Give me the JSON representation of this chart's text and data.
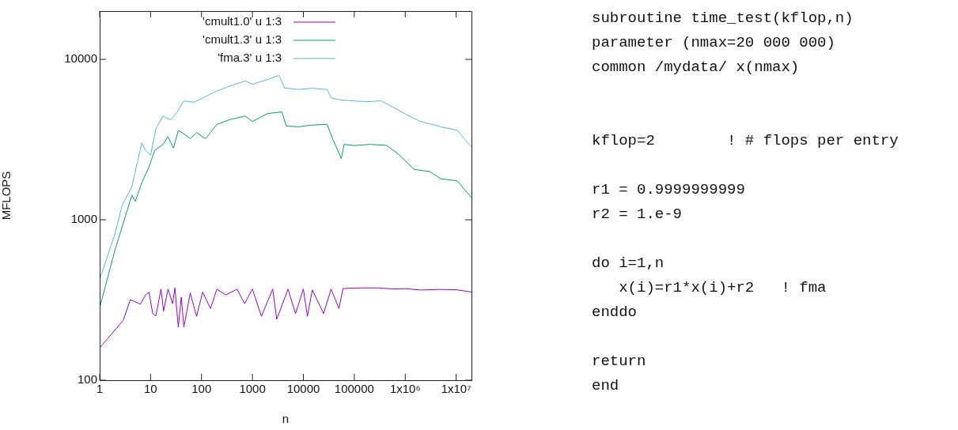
{
  "chart_data": {
    "type": "line",
    "xlabel": "n",
    "ylabel": "MFLOPS",
    "log": "xy",
    "grid": false,
    "legend": "top left",
    "marker": "none",
    "line_style": "solid",
    "xlim": [
      1,
      20000000
    ],
    "xticks": [
      1,
      10,
      100,
      1000,
      10000,
      100000,
      {
        "value": 1000000,
        "label": "1x10⁶"
      },
      {
        "value": 10000000,
        "label": "1x10⁷"
      }
    ],
    "ylim": [
      100,
      20000
    ],
    "yticks": [
      100,
      1000,
      10000
    ],
    "series": [
      {
        "name": "'cmult1.0' u 1:3",
        "color": "#9400d3",
        "x": [
          1,
          2.9,
          4,
          6.3,
          8,
          9.3,
          11,
          12.7,
          16,
          18,
          22,
          27,
          30,
          35,
          40,
          45,
          60,
          80,
          105,
          150,
          200,
          300,
          500,
          700,
          1000,
          1500,
          2500,
          3000,
          5000,
          7000,
          10000,
          12000,
          15000,
          25000,
          35000,
          50000,
          60000,
          80000,
          150000,
          300000,
          600000,
          1000000,
          2000000,
          5000000,
          10000000,
          20000000
        ],
        "values": [
          159,
          236,
          318,
          298,
          340,
          354,
          260,
          251,
          370,
          270,
          370,
          300,
          376,
          214,
          330,
          214,
          350,
          250,
          354,
          280,
          369,
          340,
          369,
          300,
          370,
          250,
          370,
          240,
          370,
          260,
          370,
          250,
          365,
          260,
          370,
          280,
          372,
          375,
          376,
          376,
          370,
          372,
          365,
          368,
          366,
          355
        ]
      },
      {
        "name": "'cmult1.3' u 1:3",
        "color": "#009e73",
        "x": [
          1,
          2,
          4.3,
          5,
          6.3,
          7,
          9.3,
          12,
          17.5,
          22,
          28,
          35,
          43,
          60,
          80,
          120,
          200,
          350,
          716,
          1000,
          2000,
          3800,
          4600,
          8000,
          15000,
          29300,
          37500,
          55500,
          63000,
          100000,
          200000,
          430000,
          700000,
          1500000,
          3000000,
          5000000,
          10500000,
          20000000
        ],
        "values": [
          283,
          650,
          1425,
          1300,
          1610,
          1750,
          2140,
          2700,
          2950,
          3300,
          2800,
          3600,
          3470,
          3200,
          3500,
          3200,
          3930,
          4200,
          4430,
          4100,
          4600,
          4700,
          3840,
          3800,
          3900,
          3930,
          3200,
          2410,
          2950,
          2900,
          2950,
          2910,
          2600,
          2060,
          2000,
          1800,
          1750,
          1370
        ]
      },
      {
        "name": "'fma.3' u 1:3",
        "color": "#56b4e9",
        "x": [
          1,
          2,
          2.75,
          4.3,
          5,
          6.7,
          8,
          10,
          12.7,
          17.5,
          25,
          33,
          45,
          72,
          100,
          200,
          400,
          716,
          1000,
          2000,
          3330,
          4300,
          8000,
          15000,
          29300,
          35500,
          50000,
          100000,
          200000,
          331000,
          600000,
          1190000,
          2000000,
          5000000,
          10500000,
          20000000
        ],
        "values": [
          424,
          820,
          1225,
          1610,
          2000,
          3010,
          2700,
          2530,
          3690,
          4430,
          4200,
          4700,
          5500,
          5410,
          5700,
          6360,
          6900,
          7330,
          7000,
          7500,
          7950,
          6620,
          6500,
          6600,
          6490,
          5750,
          5600,
          5500,
          5450,
          5520,
          5000,
          4430,
          4100,
          3800,
          3610,
          2840
        ]
      }
    ],
    "annotations": [
      "subroutine time_test(kflop,n)\nparameter (nmax=20 000 000)\ncommon /mydata/ x(nmax)",
      "kflop=2        ! # flops per entry",
      "r1 = 0.9999999999\nr2 = 1.e-9",
      "do i=1,n\n   x(i)=r1*x(i)+r2   ! fma\nenddo",
      "return\nend"
    ]
  }
}
